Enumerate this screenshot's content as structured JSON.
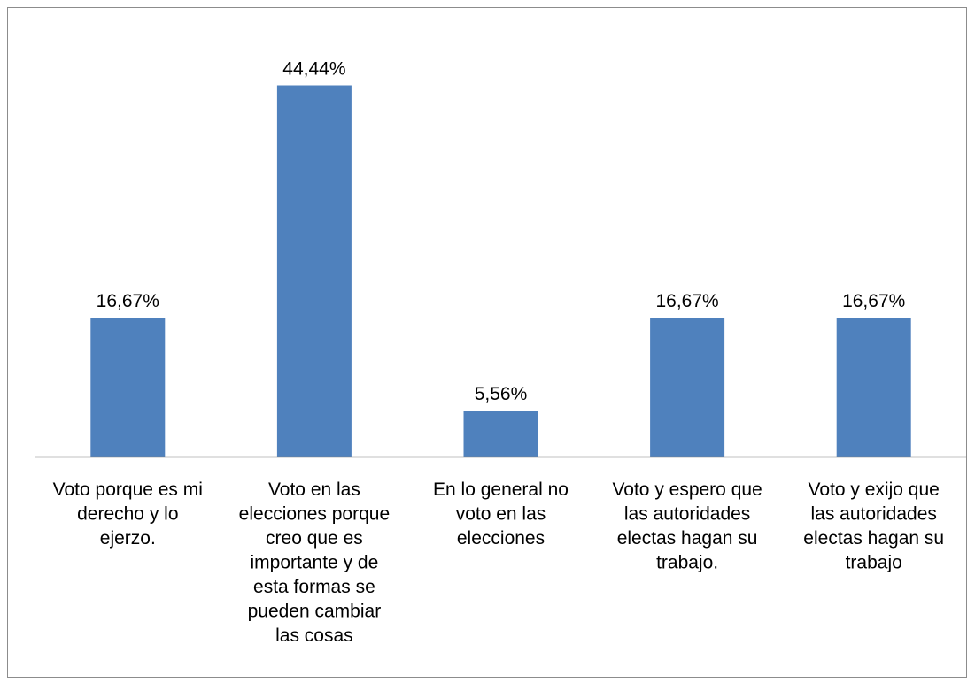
{
  "chart_data": {
    "type": "bar",
    "title": "",
    "xlabel": "",
    "ylabel": "",
    "categories": [
      "Voto porque es mi derecho y lo ejerzo.",
      "Voto en las elecciones porque creo que es importante y de esta formas se pueden cambiar las cosas",
      "En lo general no voto en las elecciones",
      "Voto y espero que las autoridades electas hagan su trabajo.",
      "Voto y exijo que las autoridades electas hagan su trabajo"
    ],
    "category_lines": [
      [
        "Voto porque es mi",
        "derecho y lo",
        "ejerzo."
      ],
      [
        "Voto en las",
        "elecciones porque",
        "creo que es",
        "importante y de",
        "esta formas se",
        "pueden cambiar",
        "las cosas"
      ],
      [
        "En lo general no",
        "voto en las",
        "elecciones"
      ],
      [
        "Voto y espero que",
        "las autoridades",
        "electas hagan su",
        "trabajo."
      ],
      [
        "Voto y exijo que",
        "las autoridades",
        "electas hagan su",
        "trabajo"
      ]
    ],
    "values": [
      16.67,
      44.44,
      5.56,
      16.67,
      16.67
    ],
    "data_labels": [
      "16,67%",
      "44,44%",
      "5,56%",
      "16,67%",
      "16,67%"
    ],
    "ylim": [
      0,
      50
    ],
    "grid": false,
    "legend": "none",
    "bar_color": "#4f81bd",
    "axis_color": "#868686"
  }
}
